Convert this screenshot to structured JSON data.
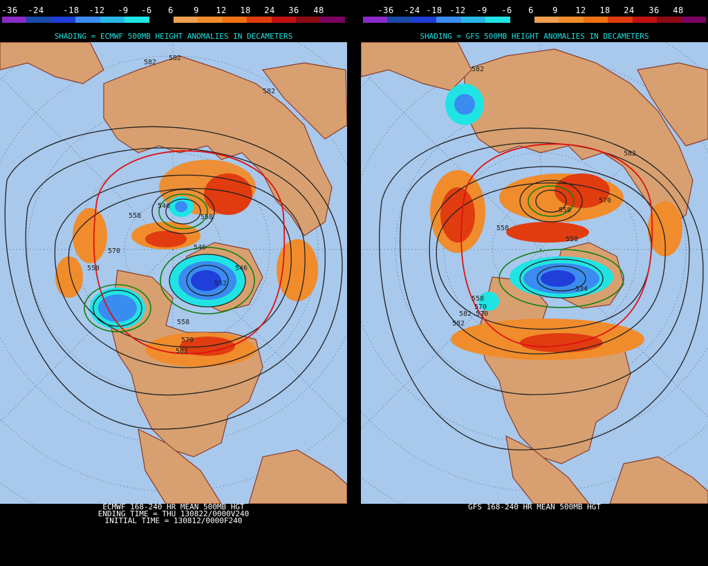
{
  "scale": {
    "labels": [
      "-36",
      "-24",
      "-18",
      "-12",
      "-9",
      "-6",
      "6",
      "9",
      "12",
      "18",
      "24",
      "36",
      "48"
    ],
    "colors": [
      "#8a2ac9",
      "#1a4aa8",
      "#1f3fd8",
      "#3a8cf0",
      "#28b6e6",
      "#20e4e4",
      "#000000",
      "#f0a050",
      "#f08c2c",
      "#f07014",
      "#e03c10",
      "#c01010",
      "#8c0a14",
      "#7a0060"
    ]
  },
  "left": {
    "subtitle": "SHADING = ECMWF 500MB HEIGHT ANOMALIES IN DECAMETERS",
    "footer": [
      "ECMWF 168-240 HR MEAN 500MB HGT",
      "ENDING TIME = THU 130822/0000V240",
      "INITIAL TIME = 130812/0000F240"
    ],
    "contour_labels": [
      "582",
      "582",
      "582",
      "546",
      "558",
      "558",
      "546",
      "552",
      "558",
      "570",
      "582",
      "570",
      "558",
      "546"
    ]
  },
  "right": {
    "subtitle": "SHADING = GFS 500MB HEIGHT ANOMALIES IN DECAMETERS",
    "footer": [
      "GFS 168-240 HR MEAN 500MB HGT"
    ],
    "contour_labels": [
      "582",
      "582",
      "558",
      "570",
      "558",
      "558",
      "570",
      "582",
      "558",
      "570",
      "582",
      "534"
    ]
  },
  "colors": {
    "ocean": "#a8c8ec",
    "land": "#d8a070",
    "coast": "#8a3a2a",
    "contour": "#202020",
    "anomaly_positive": "#f08c2c",
    "anomaly_strong": "#e03c10",
    "anomaly_negative": "#3a8cf0",
    "anomaly_weak_negative": "#20e4e4",
    "red_contour": "#e01010",
    "green_contour": "#108010"
  }
}
